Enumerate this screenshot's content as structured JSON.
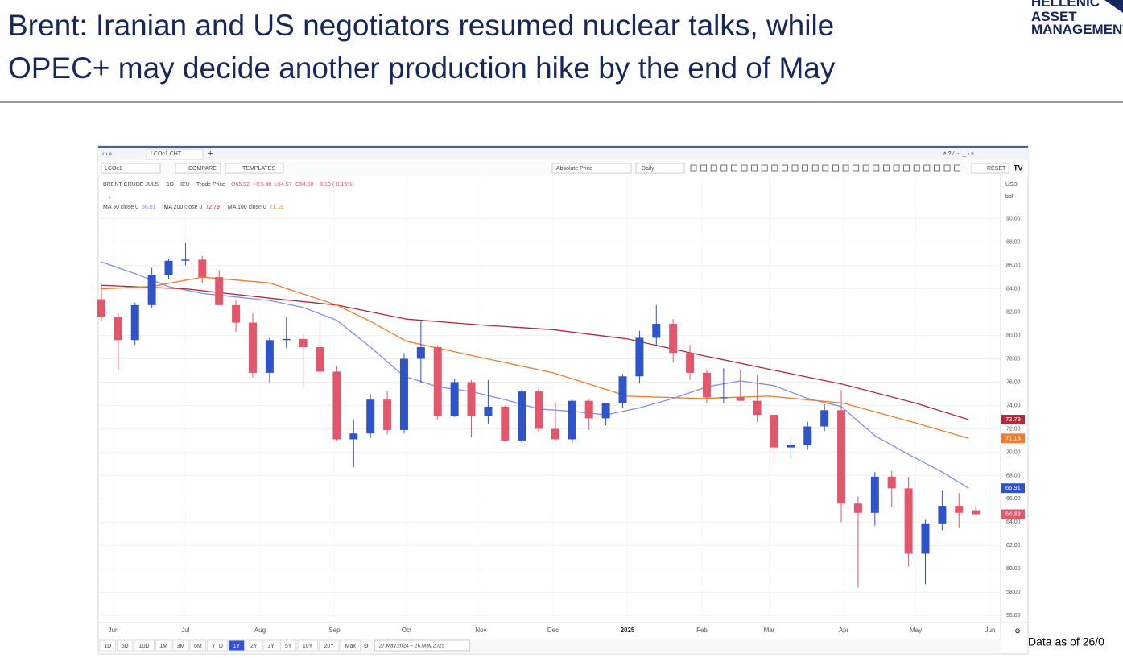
{
  "header": {
    "title_lines": [
      "Brent: Iranian and US negotiators resumed nuclear talks, while",
      "OPEC+ may decide another production hike by the end of May"
    ],
    "logo": [
      "HELLENIC",
      "ASSET",
      "MANAGEMENT"
    ]
  },
  "toolbar": {
    "tab": "LCOc1 CHT",
    "symbol": "LCOc1",
    "compare": "COMPARE",
    "templates": "TEMPLATES",
    "price_mode": "Absolute Price",
    "interval": "Daily",
    "reset": "RESET",
    "currency": "USD",
    "unit": "bbl"
  },
  "legend": {
    "instrument": "BRENT CRUDE JUL5",
    "interval": "1D",
    "exchange": "IEU",
    "field": "Trade Price",
    "ohlc": [
      "O65.02",
      "H65.40",
      "L64.57",
      "C64.68"
    ],
    "change": "-0.10 (-0.15%)"
  },
  "range_buttons": [
    "1D",
    "5D",
    "10D",
    "1M",
    "3M",
    "6M",
    "YTD",
    "1Y",
    "2Y",
    "3Y",
    "5Y",
    "10Y",
    "20Y",
    "Max"
  ],
  "active_range": "1Y",
  "date_range": "27.May.2024 – 26.May.2025",
  "footer": "Data as of 26/0",
  "chart_data": {
    "type": "candlestick",
    "x": [
      "2024-05-27",
      "2024-06-03",
      "2024-06-10",
      "2024-06-17",
      "2024-06-24",
      "2024-07-01",
      "2024-07-08",
      "2024-07-15",
      "2024-07-22",
      "2024-07-29",
      "2024-08-05",
      "2024-08-12",
      "2024-08-19",
      "2024-08-26",
      "2024-09-02",
      "2024-09-09",
      "2024-09-16",
      "2024-09-23",
      "2024-09-30",
      "2024-10-07",
      "2024-10-14",
      "2024-10-21",
      "2024-10-28",
      "2024-11-04",
      "2024-11-11",
      "2024-11-18",
      "2024-11-25",
      "2024-12-02",
      "2024-12-09",
      "2024-12-16",
      "2024-12-23",
      "2024-12-30",
      "2025-01-06",
      "2025-01-13",
      "2025-01-20",
      "2025-01-27",
      "2025-02-03",
      "2025-02-10",
      "2025-02-17",
      "2025-02-24",
      "2025-03-03",
      "2025-03-10",
      "2025-03-17",
      "2025-03-24",
      "2025-03-31",
      "2025-04-07",
      "2025-04-14",
      "2025-04-21",
      "2025-04-28",
      "2025-05-05",
      "2025-05-12",
      "2025-05-19",
      "2025-05-26"
    ],
    "open": [
      83.1,
      81.6,
      79.6,
      82.6,
      85.2,
      86.4,
      86.5,
      85.0,
      82.6,
      81.1,
      76.8,
      79.6,
      79.7,
      79.0,
      76.9,
      71.1,
      71.6,
      74.5,
      71.9,
      78.0,
      79.0,
      73.1,
      76.0,
      73.1,
      73.9,
      71.0,
      75.2,
      72.0,
      71.1,
      74.4,
      72.9,
      74.2,
      76.5,
      79.8,
      81.0,
      78.5,
      76.8,
      74.7,
      74.7,
      74.4,
      73.2,
      70.4,
      70.6,
      72.2,
      73.6,
      65.6,
      64.8,
      67.9,
      66.9,
      61.3,
      63.9,
      65.4,
      65.02
    ],
    "high": [
      84.3,
      81.9,
      82.8,
      85.8,
      86.6,
      87.9,
      86.8,
      85.6,
      83.0,
      81.9,
      79.8,
      81.6,
      80.1,
      81.2,
      77.4,
      72.8,
      75.0,
      75.2,
      78.5,
      81.2,
      79.2,
      76.3,
      76.2,
      76.2,
      74.0,
      75.4,
      75.5,
      74.3,
      74.5,
      74.5,
      74.2,
      76.7,
      80.4,
      82.6,
      81.4,
      79.2,
      77.1,
      77.2,
      77.1,
      76.6,
      73.3,
      71.4,
      72.6,
      74.1,
      75.3,
      66.2,
      68.3,
      68.4,
      67.9,
      64.2,
      66.7,
      66.5,
      65.4
    ],
    "low": [
      81.2,
      77.0,
      79.2,
      82.3,
      84.8,
      86.0,
      84.5,
      82.6,
      80.3,
      76.4,
      75.9,
      78.9,
      75.5,
      76.4,
      71.0,
      68.7,
      71.2,
      71.5,
      71.6,
      75.9,
      72.8,
      73.0,
      71.3,
      72.4,
      70.9,
      70.8,
      71.7,
      70.9,
      70.8,
      71.9,
      72.3,
      73.8,
      75.9,
      79.1,
      77.7,
      76.2,
      74.2,
      74.2,
      74.5,
      72.6,
      69.0,
      69.4,
      70.2,
      71.8,
      64.0,
      58.4,
      63.7,
      65.3,
      60.2,
      58.7,
      63.3,
      63.5,
      64.57
    ],
    "close": [
      81.6,
      79.6,
      82.6,
      85.2,
      86.4,
      86.5,
      85.0,
      82.6,
      81.1,
      76.8,
      79.6,
      79.7,
      79.0,
      76.9,
      71.1,
      71.6,
      74.5,
      71.9,
      78.0,
      79.0,
      73.1,
      76.0,
      73.1,
      73.9,
      71.0,
      75.2,
      72.0,
      71.1,
      74.4,
      72.9,
      74.2,
      76.5,
      79.8,
      81.0,
      78.5,
      76.8,
      74.7,
      74.7,
      74.4,
      73.2,
      70.4,
      70.6,
      72.2,
      73.6,
      65.6,
      64.8,
      67.9,
      66.9,
      61.3,
      63.9,
      65.4,
      64.8,
      64.68
    ],
    "up_color": "#2f53c9",
    "down_color": "#e2576b",
    "series": [
      {
        "name": "MA 50 close 0",
        "color": "#7d90ee",
        "x": [
          "2024-05-27",
          "2024-06-10",
          "2024-06-24",
          "2024-07-08",
          "2024-07-22",
          "2024-08-05",
          "2024-08-19",
          "2024-09-02",
          "2024-09-16",
          "2024-09-30",
          "2024-10-14",
          "2024-10-28",
          "2024-11-11",
          "2024-11-25",
          "2024-12-09",
          "2024-12-23",
          "2025-01-06",
          "2025-01-20",
          "2025-02-03",
          "2025-02-17",
          "2025-03-03",
          "2025-03-17",
          "2025-03-31",
          "2025-04-14",
          "2025-04-28",
          "2025-05-12",
          "2025-05-23"
        ],
        "values": [
          86.3,
          85.3,
          84.2,
          83.6,
          83.3,
          83.0,
          82.4,
          81.3,
          79.0,
          76.5,
          75.6,
          75.2,
          74.5,
          73.7,
          73.5,
          73.2,
          73.8,
          74.6,
          75.6,
          76.1,
          75.7,
          74.6,
          73.9,
          71.4,
          69.8,
          68.3,
          66.91
        ]
      },
      {
        "name": "MA 200 close 0",
        "color": "#b3283a",
        "x": [
          "2024-05-27",
          "2024-07-01",
          "2024-08-05",
          "2024-09-02",
          "2024-10-01",
          "2024-11-01",
          "2024-12-01",
          "2025-01-01",
          "2025-02-01",
          "2025-03-01",
          "2025-04-01",
          "2025-05-01",
          "2025-05-23"
        ],
        "values": [
          84.3,
          84.0,
          83.2,
          82.6,
          81.4,
          80.9,
          80.5,
          79.7,
          78.3,
          77.1,
          75.8,
          74.2,
          72.79
        ]
      },
      {
        "name": "MA 100 close 0",
        "color": "#f07c2c",
        "x": [
          "2024-05-27",
          "2024-06-17",
          "2024-07-08",
          "2024-08-05",
          "2024-09-02",
          "2024-09-16",
          "2024-10-01",
          "2024-10-28",
          "2024-12-01",
          "2025-01-01",
          "2025-02-01",
          "2025-03-01",
          "2025-04-01",
          "2025-05-01",
          "2025-05-23"
        ],
        "values": [
          84.0,
          84.2,
          85.0,
          84.5,
          82.6,
          81.2,
          79.5,
          78.3,
          76.8,
          74.8,
          74.6,
          74.8,
          74.2,
          72.5,
          71.18
        ]
      }
    ],
    "xlim": [
      "2024-05-26",
      "2025-06-05"
    ],
    "xticks": [
      {
        "value": "2024-06-01",
        "label": "Jun"
      },
      {
        "value": "2024-07-01",
        "label": "Jul"
      },
      {
        "value": "2024-08-01",
        "label": "Aug"
      },
      {
        "value": "2024-09-01",
        "label": "Sep"
      },
      {
        "value": "2024-10-01",
        "label": "Oct"
      },
      {
        "value": "2024-11-01",
        "label": "Nov"
      },
      {
        "value": "2024-12-01",
        "label": "Dec"
      },
      {
        "value": "2025-01-01",
        "label": "2025"
      },
      {
        "value": "2025-02-01",
        "label": "Feb"
      },
      {
        "value": "2025-03-01",
        "label": "Mar"
      },
      {
        "value": "2025-04-01",
        "label": "Apr"
      },
      {
        "value": "2025-05-01",
        "label": "May"
      },
      {
        "value": "2025-06-01",
        "label": "Jun"
      }
    ],
    "ylim": [
      55.4,
      93.7
    ],
    "yticks": [
      {
        "value": 56,
        "label": "56.00"
      },
      {
        "value": 58,
        "label": "58.00"
      },
      {
        "value": 60,
        "label": "60.00"
      },
      {
        "value": 62,
        "label": "62.00"
      },
      {
        "value": 64,
        "label": "64.00"
      },
      {
        "value": 66,
        "label": "66.00"
      },
      {
        "value": 68,
        "label": "68.00"
      },
      {
        "value": 70,
        "label": "70.00"
      },
      {
        "value": 72,
        "label": "72.00"
      },
      {
        "value": 74,
        "label": "74.00"
      },
      {
        "value": 76,
        "label": "76.00"
      },
      {
        "value": 78,
        "label": "78.00"
      },
      {
        "value": 80,
        "label": "80.00"
      },
      {
        "value": 82,
        "label": "82.00"
      },
      {
        "value": 84,
        "label": "84.00"
      },
      {
        "value": 86,
        "label": "86.00"
      },
      {
        "value": 88,
        "label": "88.00"
      },
      {
        "value": 90,
        "label": "90.00"
      }
    ],
    "grid": true
  }
}
